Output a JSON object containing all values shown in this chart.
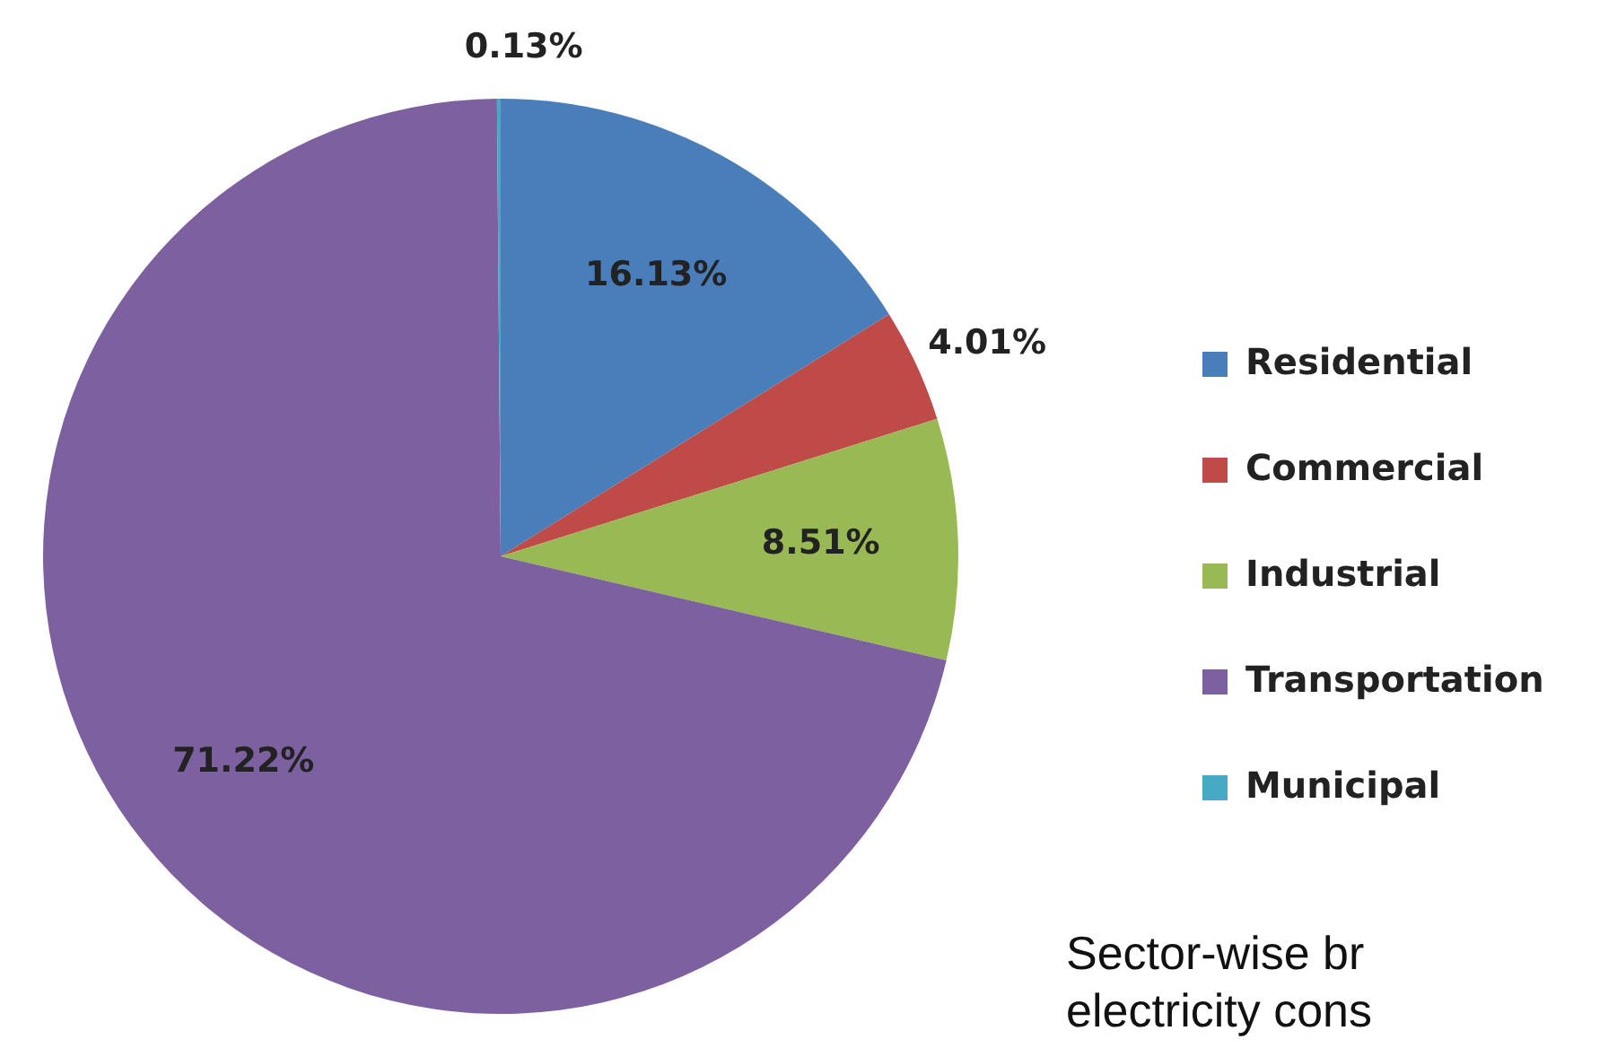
{
  "chart_data": {
    "type": "pie",
    "categories": [
      "Residential",
      "Commercial",
      "Industrial",
      "Transportation",
      "Municipal"
    ],
    "values": [
      16.13,
      4.01,
      8.51,
      71.22,
      0.13
    ],
    "colors": [
      "#4a7ebb",
      "#be4b48",
      "#98b954",
      "#7d60a0",
      "#46aac5"
    ],
    "value_labels": [
      "16.13%",
      "4.01%",
      "8.51%",
      "71.22%",
      "0.13%"
    ],
    "legend": "right",
    "annotations": [
      "Sector-wise br",
      "electricity cons"
    ]
  }
}
